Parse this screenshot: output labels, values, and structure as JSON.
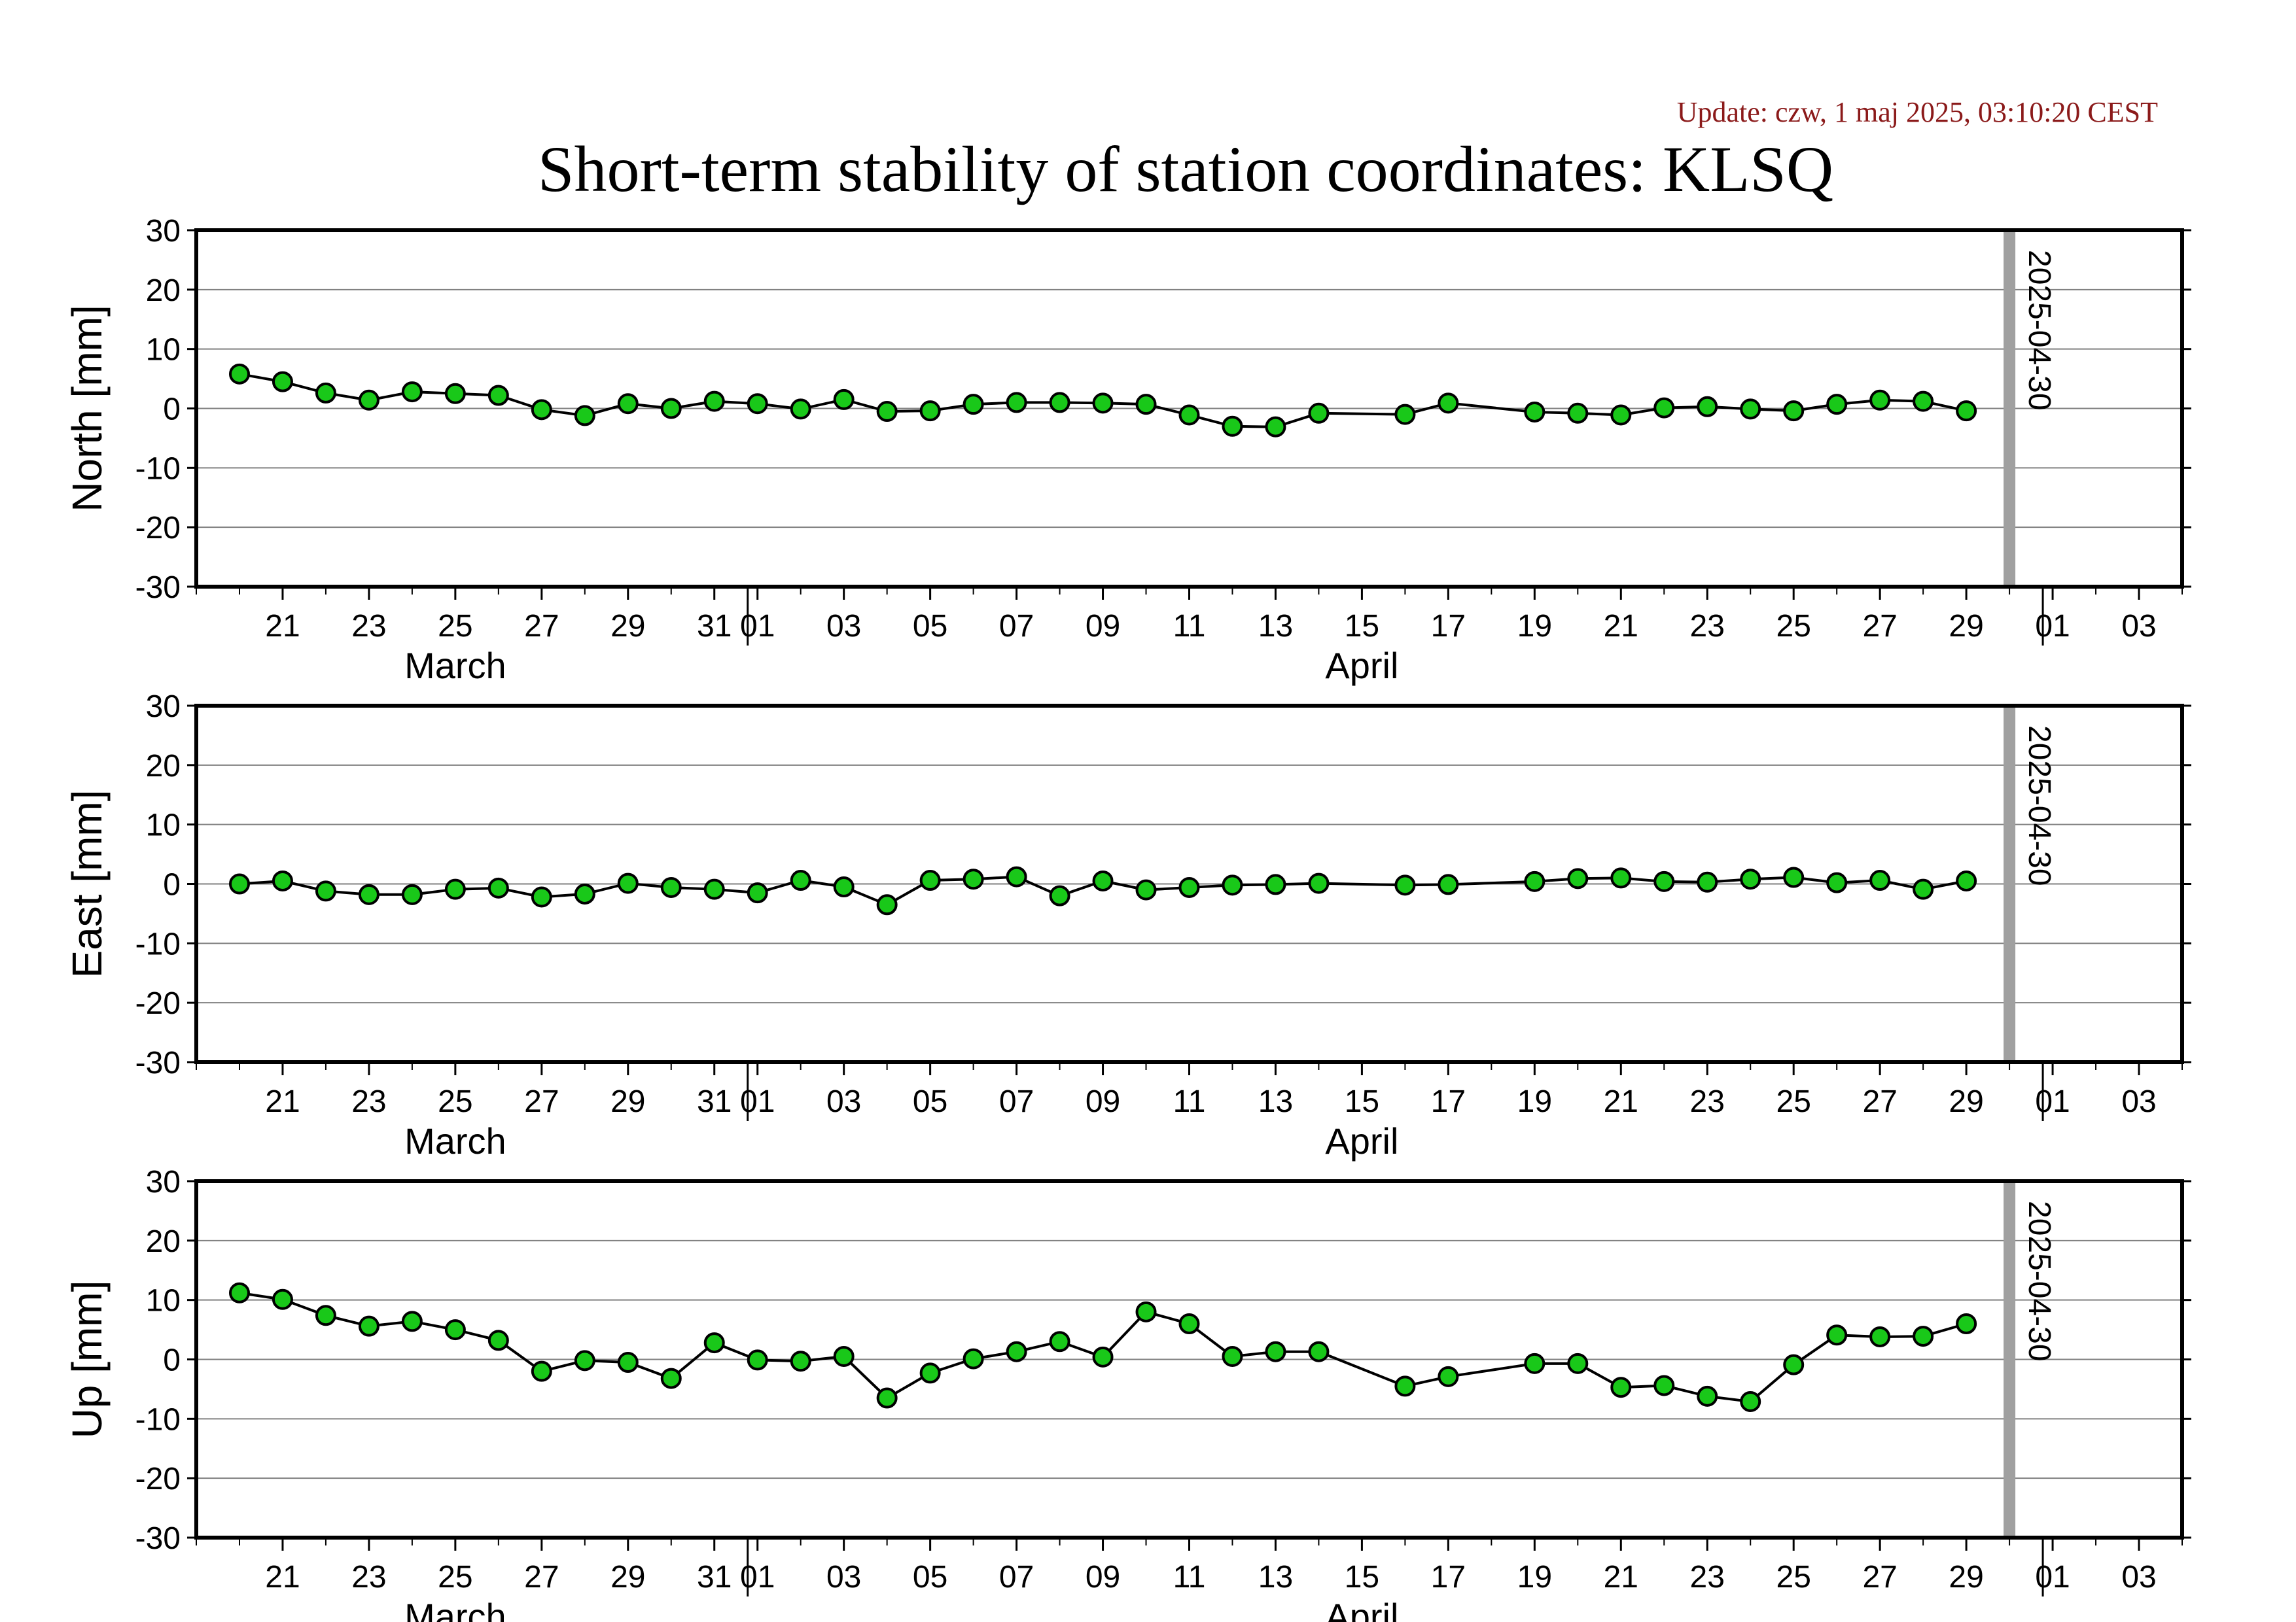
{
  "update_text": "Update: czw, 1 maj 2025, 03:10:20 CEST",
  "title": "Short-term stability of station coordinates: KLSQ",
  "date_marker": {
    "date": "2025-04-30",
    "label": "2025-04-30",
    "color": "#a0a0a0"
  },
  "colors": {
    "marker_fill": "#19c819",
    "marker_edge": "#000000",
    "line": "#000000",
    "grid": "#808080"
  },
  "x_axis": {
    "range": [
      "2025-03-19",
      "2025-05-04"
    ],
    "tick_labels": [
      {
        "date": "2025-03-21",
        "label": "21"
      },
      {
        "date": "2025-03-23",
        "label": "23"
      },
      {
        "date": "2025-03-25",
        "label": "25"
      },
      {
        "date": "2025-03-27",
        "label": "27"
      },
      {
        "date": "2025-03-29",
        "label": "29"
      },
      {
        "date": "2025-03-31",
        "label": "31"
      },
      {
        "date": "2025-04-01",
        "label": "01"
      },
      {
        "date": "2025-04-03",
        "label": "03"
      },
      {
        "date": "2025-04-05",
        "label": "05"
      },
      {
        "date": "2025-04-07",
        "label": "07"
      },
      {
        "date": "2025-04-09",
        "label": "09"
      },
      {
        "date": "2025-04-11",
        "label": "11"
      },
      {
        "date": "2025-04-13",
        "label": "13"
      },
      {
        "date": "2025-04-15",
        "label": "15"
      },
      {
        "date": "2025-04-17",
        "label": "17"
      },
      {
        "date": "2025-04-19",
        "label": "19"
      },
      {
        "date": "2025-04-21",
        "label": "21"
      },
      {
        "date": "2025-04-23",
        "label": "23"
      },
      {
        "date": "2025-04-25",
        "label": "25"
      },
      {
        "date": "2025-04-27",
        "label": "27"
      },
      {
        "date": "2025-04-29",
        "label": "29"
      },
      {
        "date": "2025-05-01",
        "label": "01"
      },
      {
        "date": "2025-05-03",
        "label": "03"
      }
    ],
    "month_boundaries": [
      "2025-04-01",
      "2025-05-01"
    ],
    "month_labels": [
      {
        "date": "2025-03-25",
        "label": "March"
      },
      {
        "date": "2025-04-15",
        "label": "April"
      }
    ]
  },
  "chart_data": [
    {
      "type": "scatter",
      "ylabel": "North [mm]",
      "ylim": [
        -30,
        30
      ],
      "yticks": [
        30,
        20,
        10,
        0,
        -10,
        -20,
        -30
      ],
      "grid": true,
      "x": [
        "2025-03-20",
        "2025-03-21",
        "2025-03-22",
        "2025-03-23",
        "2025-03-24",
        "2025-03-25",
        "2025-03-26",
        "2025-03-27",
        "2025-03-28",
        "2025-03-29",
        "2025-03-30",
        "2025-03-31",
        "2025-04-01",
        "2025-04-02",
        "2025-04-03",
        "2025-04-04",
        "2025-04-05",
        "2025-04-06",
        "2025-04-07",
        "2025-04-08",
        "2025-04-09",
        "2025-04-10",
        "2025-04-11",
        "2025-04-12",
        "2025-04-13",
        "2025-04-14",
        "2025-04-16",
        "2025-04-17",
        "2025-04-19",
        "2025-04-20",
        "2025-04-21",
        "2025-04-22",
        "2025-04-23",
        "2025-04-24",
        "2025-04-25",
        "2025-04-26",
        "2025-04-27",
        "2025-04-28",
        "2025-04-29"
      ],
      "y": [
        5.8,
        4.5,
        2.6,
        1.4,
        2.8,
        2.5,
        2.2,
        -0.2,
        -1.2,
        0.8,
        0.0,
        1.2,
        0.8,
        -0.1,
        1.5,
        -0.5,
        -0.4,
        0.7,
        1.0,
        1.0,
        0.9,
        0.7,
        -1.1,
        -3.0,
        -3.1,
        -0.8,
        -1.0,
        0.9,
        -0.6,
        -0.8,
        -1.1,
        0.1,
        0.3,
        -0.1,
        -0.4,
        0.7,
        1.4,
        1.2,
        -0.4
      ]
    },
    {
      "type": "scatter",
      "ylabel": "East [mm]",
      "ylim": [
        -30,
        30
      ],
      "yticks": [
        30,
        20,
        10,
        0,
        -10,
        -20,
        -30
      ],
      "grid": true,
      "x": [
        "2025-03-20",
        "2025-03-21",
        "2025-03-22",
        "2025-03-23",
        "2025-03-24",
        "2025-03-25",
        "2025-03-26",
        "2025-03-27",
        "2025-03-28",
        "2025-03-29",
        "2025-03-30",
        "2025-03-31",
        "2025-04-01",
        "2025-04-02",
        "2025-04-03",
        "2025-04-04",
        "2025-04-05",
        "2025-04-06",
        "2025-04-07",
        "2025-04-08",
        "2025-04-09",
        "2025-04-10",
        "2025-04-11",
        "2025-04-12",
        "2025-04-13",
        "2025-04-14",
        "2025-04-16",
        "2025-04-17",
        "2025-04-19",
        "2025-04-20",
        "2025-04-21",
        "2025-04-22",
        "2025-04-23",
        "2025-04-24",
        "2025-04-25",
        "2025-04-26",
        "2025-04-27",
        "2025-04-28",
        "2025-04-29"
      ],
      "y": [
        0.0,
        0.5,
        -1.2,
        -1.8,
        -1.8,
        -0.9,
        -0.7,
        -2.2,
        -1.7,
        0.1,
        -0.6,
        -0.9,
        -1.5,
        0.6,
        -0.5,
        -3.5,
        0.6,
        0.8,
        1.2,
        -2.0,
        0.5,
        -1.0,
        -0.6,
        -0.2,
        -0.1,
        0.1,
        -0.2,
        -0.1,
        0.4,
        0.9,
        1.0,
        0.4,
        0.3,
        0.8,
        1.1,
        0.2,
        0.6,
        -0.9,
        0.5
      ]
    },
    {
      "type": "scatter",
      "ylabel": "Up [mm]",
      "ylim": [
        -30,
        30
      ],
      "yticks": [
        30,
        20,
        10,
        0,
        -10,
        -20,
        -30
      ],
      "grid": true,
      "x": [
        "2025-03-20",
        "2025-03-21",
        "2025-03-22",
        "2025-03-23",
        "2025-03-24",
        "2025-03-25",
        "2025-03-26",
        "2025-03-27",
        "2025-03-28",
        "2025-03-29",
        "2025-03-30",
        "2025-03-31",
        "2025-04-01",
        "2025-04-02",
        "2025-04-03",
        "2025-04-04",
        "2025-04-05",
        "2025-04-06",
        "2025-04-07",
        "2025-04-08",
        "2025-04-09",
        "2025-04-10",
        "2025-04-11",
        "2025-04-12",
        "2025-04-13",
        "2025-04-14",
        "2025-04-16",
        "2025-04-17",
        "2025-04-19",
        "2025-04-20",
        "2025-04-21",
        "2025-04-22",
        "2025-04-23",
        "2025-04-24",
        "2025-04-25",
        "2025-04-26",
        "2025-04-27",
        "2025-04-28",
        "2025-04-29"
      ],
      "y": [
        11.2,
        10.1,
        7.4,
        5.6,
        6.4,
        5.0,
        3.2,
        -2.0,
        -0.2,
        -0.5,
        -3.2,
        2.8,
        -0.1,
        -0.3,
        0.5,
        -6.5,
        -2.3,
        0.1,
        1.3,
        3.0,
        0.4,
        8.0,
        6.0,
        0.5,
        1.3,
        1.3,
        -4.5,
        -2.9,
        -0.7,
        -0.7,
        -4.7,
        -4.4,
        -6.2,
        -7.1,
        -0.9,
        4.1,
        3.8,
        3.9,
        6.0
      ]
    }
  ]
}
